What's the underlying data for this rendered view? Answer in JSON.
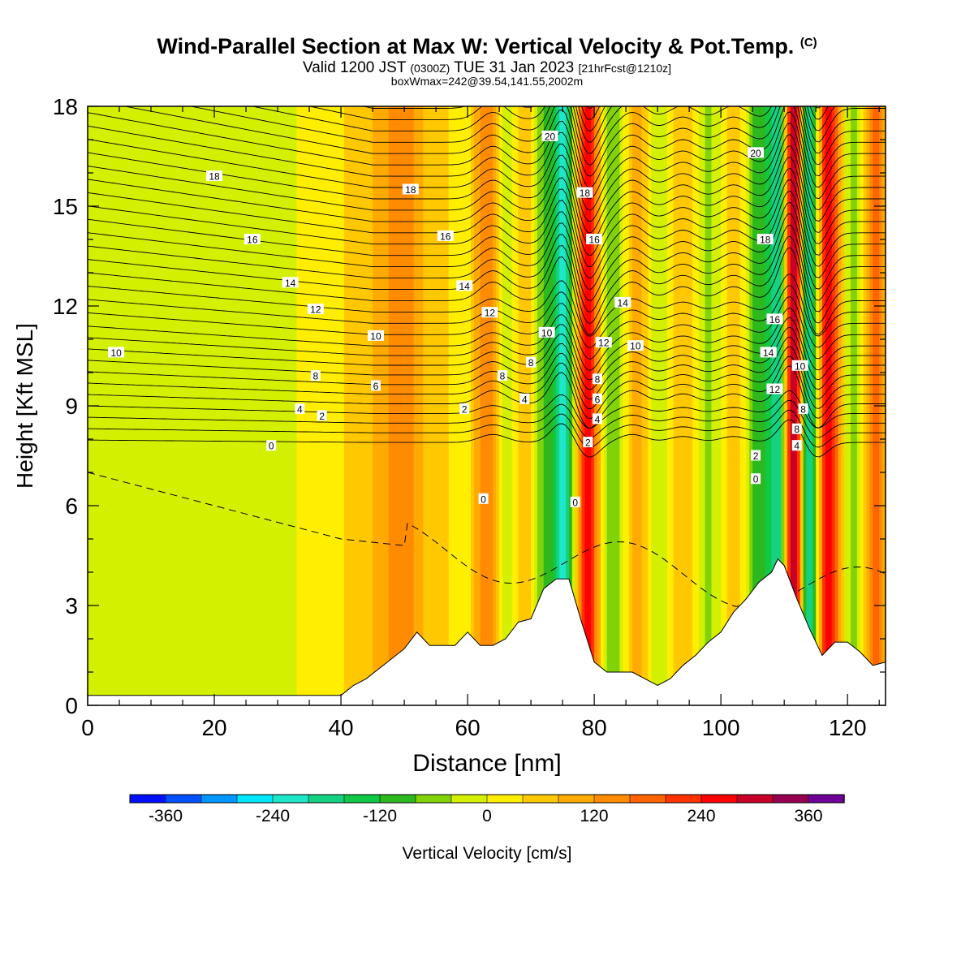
{
  "header": {
    "title": "Wind-Parallel Section at Max W: Vertical Velocity & Pot.Temp.",
    "copyright": "(C)",
    "valid_main": "Valid 1200 JST",
    "valid_utc": "(0300Z)",
    "valid_date": "TUE 31 Jan 2023",
    "forecast": "[21hrFcst@1210z]",
    "box_info": "boxWmax=242@39.54,141.55,2002m"
  },
  "chart_data": {
    "type": "heatmap",
    "title": "Wind-Parallel Section at Max W: Vertical Velocity & Pot.Temp.",
    "xlabel": "Distance [nm]",
    "ylabel": "Height [Kft MSL]",
    "xlim": [
      0,
      126
    ],
    "ylim": [
      0,
      18
    ],
    "xticks": [
      0,
      20,
      40,
      60,
      80,
      100,
      120
    ],
    "yticks": [
      0,
      3,
      6,
      9,
      12,
      15,
      18
    ],
    "grid": false,
    "colorbar": {
      "label": "Vertical Velocity [cm/s]",
      "placement": "bottom",
      "range": [
        -400,
        400
      ],
      "ticks": [
        -360,
        -240,
        -120,
        0,
        120,
        240,
        360
      ],
      "levels": [
        -400,
        -360,
        -320,
        -280,
        -240,
        -200,
        -160,
        -120,
        -80,
        -40,
        0,
        40,
        80,
        120,
        160,
        200,
        240,
        280,
        320,
        360,
        400
      ],
      "colors": [
        "#0010ff",
        "#0050ff",
        "#0096ff",
        "#00e6ff",
        "#1ee6c8",
        "#14d282",
        "#0fc846",
        "#2db81e",
        "#82d20a",
        "#d2f000",
        "#ffee00",
        "#ffc800",
        "#ffaa00",
        "#ff8c00",
        "#ff6400",
        "#ff3200",
        "#ff0000",
        "#c80028",
        "#960050",
        "#6e0096"
      ]
    },
    "vertical_velocity_bands": [
      {
        "x": 3,
        "w": -10,
        "width": 6
      },
      {
        "x": 22,
        "w": -40,
        "width": 16
      },
      {
        "x": 36,
        "w": 20,
        "width": 6
      },
      {
        "x": 46,
        "w": 70,
        "width": 6
      },
      {
        "x": 50,
        "w": 90,
        "width": 3
      },
      {
        "x": 56,
        "w": 60,
        "width": 3
      },
      {
        "x": 59,
        "w": -40,
        "width": 2.5
      },
      {
        "x": 63,
        "w": 150,
        "width": 2.5
      },
      {
        "x": 66,
        "w": -70,
        "width": 2
      },
      {
        "x": 69,
        "w": 80,
        "width": 2
      },
      {
        "x": 72,
        "w": -100,
        "width": 1.6
      },
      {
        "x": 75,
        "w": -250,
        "width": 1.5
      },
      {
        "x": 79,
        "w": 270,
        "width": 1.7
      },
      {
        "x": 83,
        "w": -80,
        "width": 2
      },
      {
        "x": 87,
        "w": 100,
        "width": 2
      },
      {
        "x": 90,
        "w": -50,
        "width": 2.5
      },
      {
        "x": 94,
        "w": 70,
        "width": 2.5
      },
      {
        "x": 98,
        "w": -60,
        "width": 2.5
      },
      {
        "x": 102,
        "w": 60,
        "width": 2
      },
      {
        "x": 106,
        "w": -120,
        "width": 2
      },
      {
        "x": 109,
        "w": -200,
        "width": 1.5
      },
      {
        "x": 111.5,
        "w": 340,
        "width": 1.4
      },
      {
        "x": 114,
        "w": -250,
        "width": 1.5
      },
      {
        "x": 117,
        "w": 250,
        "width": 2
      },
      {
        "x": 121,
        "w": -80,
        "width": 2
      },
      {
        "x": 124.5,
        "w": 160,
        "width": 2
      }
    ],
    "terrain_height_kft": {
      "x": [
        0,
        40,
        42,
        44,
        46,
        48,
        50,
        52,
        54,
        58,
        60,
        62,
        64,
        66,
        68,
        70,
        72,
        74,
        76,
        78,
        80,
        82,
        86,
        90,
        92,
        94,
        96,
        98,
        100,
        102,
        104,
        106,
        108,
        109,
        110,
        112,
        114,
        116,
        118,
        120,
        122,
        124,
        126
      ],
      "h": [
        0.3,
        0.3,
        0.6,
        0.8,
        1.1,
        1.4,
        1.7,
        2.2,
        1.8,
        1.8,
        2.2,
        1.8,
        1.8,
        2.0,
        2.5,
        2.6,
        3.5,
        3.8,
        3.8,
        2.5,
        1.3,
        1.0,
        1.0,
        0.6,
        0.8,
        1.2,
        1.5,
        1.9,
        2.2,
        2.8,
        3.2,
        3.7,
        4.0,
        4.4,
        4.2,
        3.2,
        2.3,
        1.5,
        1.9,
        1.9,
        1.6,
        1.2,
        1.3
      ]
    },
    "potential_temperature_contours": {
      "units_offset_label_values": [
        0,
        2,
        4,
        6,
        8,
        10,
        12,
        14,
        16,
        18,
        20
      ],
      "labels": [
        {
          "text": "18",
          "x": 20,
          "y": 15.9
        },
        {
          "text": "16",
          "x": 26,
          "y": 14.0
        },
        {
          "text": "14",
          "x": 32,
          "y": 12.7
        },
        {
          "text": "12",
          "x": 36,
          "y": 11.9
        },
        {
          "text": "10",
          "x": 4.5,
          "y": 10.6
        },
        {
          "text": "10",
          "x": 45.5,
          "y": 11.1
        },
        {
          "text": "8",
          "x": 36,
          "y": 9.9
        },
        {
          "text": "6",
          "x": 45.5,
          "y": 9.6
        },
        {
          "text": "4",
          "x": 33.5,
          "y": 8.9
        },
        {
          "text": "2",
          "x": 37,
          "y": 8.7
        },
        {
          "text": "0",
          "x": 29,
          "y": 7.8
        },
        {
          "text": "18",
          "x": 51,
          "y": 15.5
        },
        {
          "text": "16",
          "x": 56.5,
          "y": 14.1
        },
        {
          "text": "14",
          "x": 59.5,
          "y": 12.6
        },
        {
          "text": "12",
          "x": 63.5,
          "y": 11.8
        },
        {
          "text": "10",
          "x": 72.5,
          "y": 11.2
        },
        {
          "text": "8",
          "x": 65.5,
          "y": 9.9
        },
        {
          "text": "8",
          "x": 70,
          "y": 10.3
        },
        {
          "text": "4",
          "x": 69,
          "y": 9.2
        },
        {
          "text": "2",
          "x": 59.5,
          "y": 8.9
        },
        {
          "text": "0",
          "x": 62.5,
          "y": 6.2
        },
        {
          "text": "20",
          "x": 73,
          "y": 17.1
        },
        {
          "text": "18",
          "x": 78.5,
          "y": 15.4
        },
        {
          "text": "16",
          "x": 80,
          "y": 14.0
        },
        {
          "text": "14",
          "x": 84.5,
          "y": 12.1
        },
        {
          "text": "12",
          "x": 81.5,
          "y": 10.9
        },
        {
          "text": "10",
          "x": 86.5,
          "y": 10.8
        },
        {
          "text": "8",
          "x": 80.5,
          "y": 9.8
        },
        {
          "text": "6",
          "x": 80.5,
          "y": 9.2
        },
        {
          "text": "4",
          "x": 80.5,
          "y": 8.6
        },
        {
          "text": "2",
          "x": 79,
          "y": 7.9
        },
        {
          "text": "0",
          "x": 77,
          "y": 6.1
        },
        {
          "text": "20",
          "x": 105.5,
          "y": 16.6
        },
        {
          "text": "18",
          "x": 107,
          "y": 14.0
        },
        {
          "text": "16",
          "x": 108.5,
          "y": 11.6
        },
        {
          "text": "14",
          "x": 107.5,
          "y": 10.6
        },
        {
          "text": "12",
          "x": 108.5,
          "y": 9.5
        },
        {
          "text": "10",
          "x": 112.5,
          "y": 10.2
        },
        {
          "text": "8",
          "x": 112,
          "y": 8.3
        },
        {
          "text": "8",
          "x": 113,
          "y": 8.9
        },
        {
          "text": "4",
          "x": 112,
          "y": 7.8
        },
        {
          "text": "2",
          "x": 105.5,
          "y": 7.5
        },
        {
          "text": "0",
          "x": 105.5,
          "y": 6.8
        }
      ]
    }
  }
}
